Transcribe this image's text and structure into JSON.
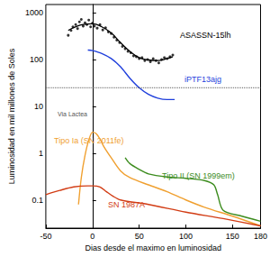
{
  "chart_data": {
    "type": "line",
    "xlabel": "Dias desde el maximo en luminosidad",
    "ylabel": "Luminosidad en mil millones de Soles",
    "log": "y",
    "grid": false,
    "xlim": [
      -50,
      180
    ],
    "xticks": [
      -50,
      0,
      50,
      100,
      150
    ],
    "ylim": [
      0.025,
      1500
    ],
    "yticks": [
      0.1,
      1,
      10,
      100,
      1000
    ],
    "series": [
      {
        "name": "ASASSN-15lh",
        "color": "#000000",
        "type": "scatter",
        "marker": "circle",
        "x": [
          -26,
          -23,
          -21,
          -18,
          -16,
          -14,
          -12,
          -10,
          -8,
          -6,
          -4,
          -2,
          0,
          2,
          5,
          8,
          11,
          14,
          17,
          20,
          23,
          26,
          29,
          32,
          35,
          38,
          41,
          44,
          47,
          50,
          53,
          56,
          59,
          62,
          65,
          68,
          71,
          74,
          77,
          80,
          83,
          86
        ],
        "values": [
          330,
          420,
          500,
          560,
          460,
          640,
          720,
          520,
          610,
          560,
          700,
          500,
          600,
          520,
          470,
          560,
          430,
          480,
          390,
          360,
          300,
          260,
          230,
          190,
          170,
          150,
          140,
          120,
          115,
          105,
          110,
          95,
          100,
          90,
          105,
          95,
          85,
          100,
          110,
          105,
          115,
          125
        ],
        "fit": {
          "x": [
            -26,
            -20,
            -10,
            0,
            10,
            20,
            30,
            40,
            50,
            60,
            70,
            80,
            86
          ],
          "values": [
            420,
            480,
            560,
            580,
            500,
            370,
            230,
            150,
            110,
            98,
            95,
            105,
            115
          ]
        }
      },
      {
        "name": "iPTF13ajg",
        "color": "#1f3fdc",
        "type": "line",
        "line_style": "solid",
        "x": [
          -5,
          0,
          10,
          20,
          30,
          40,
          50,
          60,
          70,
          80,
          88
        ],
        "values": [
          160,
          155,
          135,
          105,
          70,
          40,
          25,
          18,
          15,
          14,
          14
        ]
      },
      {
        "name": "Via Lactea",
        "color": "#555555",
        "type": "line",
        "line_style": "dotted",
        "x": [
          -50,
          180
        ],
        "values": [
          25,
          25
        ]
      },
      {
        "name": "Tipo Ia (SN 2011fe)",
        "color": "#f0a030",
        "type": "line",
        "line_style": "solid",
        "x": [
          -15,
          -12,
          -8,
          -4,
          0,
          4,
          8,
          12,
          20,
          30,
          40,
          60,
          80,
          100,
          120,
          150,
          180
        ],
        "values": [
          0.08,
          0.3,
          0.9,
          1.9,
          2.8,
          2.6,
          2.0,
          1.4,
          0.8,
          0.42,
          0.3,
          0.21,
          0.15,
          0.1,
          0.07,
          0.045,
          0.028
        ]
      },
      {
        "name": "Tipo II (SN 1999em)",
        "color": "#3c8c1e",
        "type": "line",
        "line_style": "solid",
        "x": [
          35,
          40,
          50,
          60,
          80,
          100,
          120,
          130,
          134,
          140,
          160,
          180
        ],
        "values": [
          0.8,
          0.6,
          0.45,
          0.36,
          0.31,
          0.29,
          0.26,
          0.21,
          0.13,
          0.06,
          0.045,
          0.035
        ]
      },
      {
        "name": "SN 1987A",
        "color": "#d23c14",
        "type": "line",
        "line_style": "solid",
        "x": [
          -50,
          -35,
          -20,
          -5,
          0,
          8,
          15,
          22,
          30,
          60,
          100,
          140,
          180
        ],
        "values": [
          0.13,
          0.16,
          0.19,
          0.2,
          0.2,
          0.19,
          0.15,
          0.12,
          0.1,
          0.08,
          0.055,
          0.04,
          0.028
        ]
      }
    ]
  }
}
